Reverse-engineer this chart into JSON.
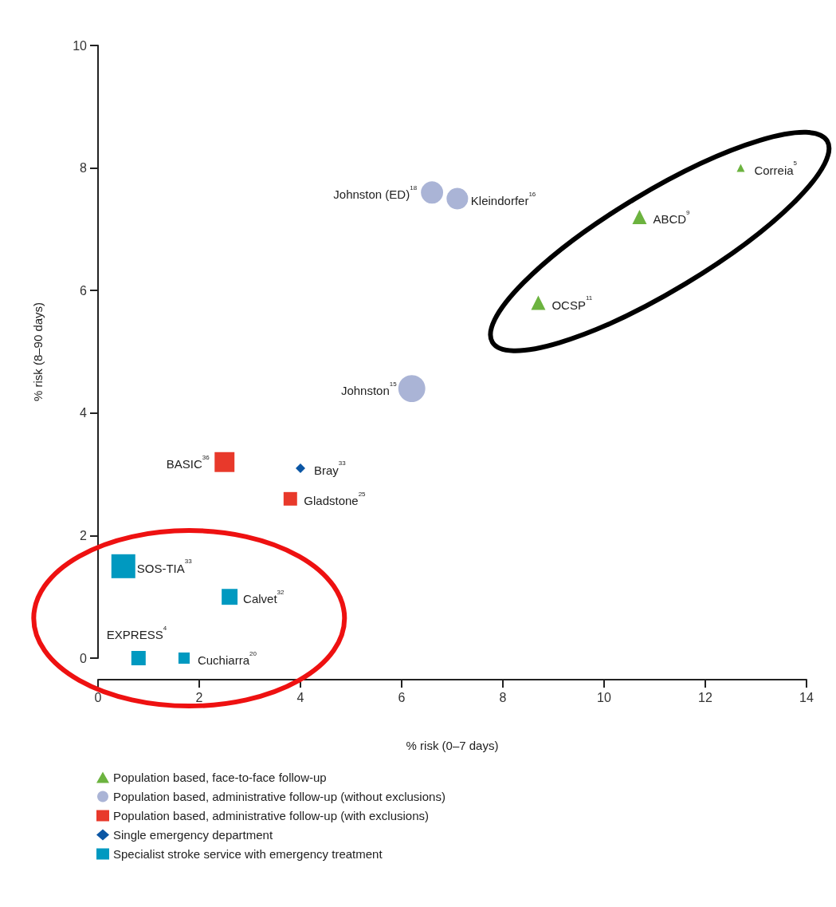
{
  "chart_data": {
    "type": "bubble",
    "xlabel": "% risk (0–7 days)",
    "ylabel": "% risk (8–90 days)",
    "xlim": [
      0,
      14
    ],
    "xticks": [
      0,
      2,
      4,
      6,
      8,
      10,
      12,
      14
    ],
    "ylim": [
      0,
      10
    ],
    "yticks": [
      0,
      2,
      4,
      6,
      8,
      10
    ],
    "grid": false,
    "legend": "bottom left",
    "series": [
      {
        "name": "Population based, face-to-face follow-up",
        "color": "#6cb33f",
        "marker": "triangle",
        "x": [
          12.7,
          10.7,
          8.7
        ],
        "values": [
          8.0,
          7.2,
          5.8
        ],
        "sizes": [
          0.056,
          0.18,
          0.18
        ]
      },
      {
        "name": "Population based, administrative follow-up (without exclusions)",
        "color": "#aab4d6",
        "marker": "circle",
        "x": [
          6.6,
          7.1,
          6.2
        ],
        "values": [
          7.6,
          7.5,
          4.4
        ],
        "sizes": [
          0.68,
          0.64,
          1
        ]
      },
      {
        "name": "Population based, administrative follow-up (with exclusions)",
        "color": "#e8392b",
        "marker": "square",
        "x": [
          2.5,
          3.8
        ],
        "values": [
          3.2,
          2.6
        ],
        "sizes": [
          0.69,
          0.32
        ]
      },
      {
        "name": "Single emergency department",
        "color": "#0b56a4",
        "marker": "diamond",
        "x": [
          4.0
        ],
        "values": [
          3.1
        ],
        "sizes": [
          0.08
        ]
      },
      {
        "name": "Specialist stroke service with emergency treatment",
        "color": "#0099c0",
        "marker": "square",
        "x": [
          0.5,
          2.6,
          0.8,
          1.7
        ],
        "values": [
          1.5,
          1.0,
          0,
          0
        ],
        "sizes": [
          1,
          0.44,
          0.36,
          0.22
        ]
      }
    ],
    "annotations": [
      {
        "text": "Correia$^{5}$",
        "x": 12.7,
        "y": 8.0
      },
      {
        "text": "ABCD$^{9}$",
        "x": 10.7,
        "y": 7.2
      },
      {
        "text": "OCSP$^{11}$",
        "x": 8.7,
        "y": 5.8
      },
      {
        "text": "Johnston (ED)$^{18}$",
        "x": 6.6,
        "y": 7.6
      },
      {
        "text": "Kleindorfer$^{16}$",
        "x": 7.1,
        "y": 7.5
      },
      {
        "text": "Johnston$^{15}$",
        "x": 6.2,
        "y": 4.4
      },
      {
        "text": "BASIC$^{36}$",
        "x": 2.5,
        "y": 3.2
      },
      {
        "text": "Gladstone$^{25}$",
        "x": 3.8,
        "y": 2.6
      },
      {
        "text": "Bray$^{33}$",
        "x": 4.0,
        "y": 3.1
      },
      {
        "text": "SOS-TIA$^{33}$",
        "x": 0.5,
        "y": 1.5
      },
      {
        "text": "Calvet$^{32}$",
        "x": 2.6,
        "y": 1.0
      },
      {
        "text": "EXPRESS$^{4}$",
        "x": 0.8,
        "y": 0
      },
      {
        "text": "Cuchiarra$^{20}$",
        "x": 1.7,
        "y": 0
      }
    ]
  }
}
